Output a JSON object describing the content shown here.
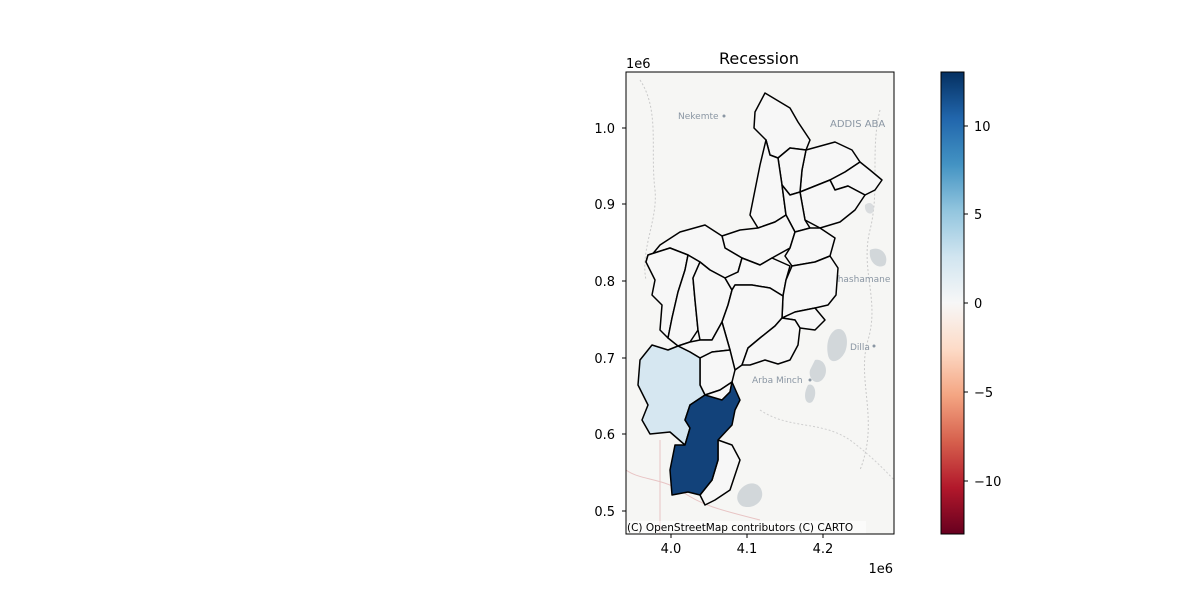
{
  "map": {
    "title": "Recession",
    "x_ticks": [
      "4.0",
      "4.1",
      "4.2"
    ],
    "y_ticks": [
      "0.5",
      "0.6",
      "0.7",
      "0.8",
      "0.9",
      "1.0"
    ],
    "x_offset": "1e6",
    "y_offset": "1e6",
    "attribution": "(C) OpenStreetMap contributors (C) CARTO",
    "place_labels": [
      "Nekemte",
      "ADDIS ABA",
      "Shashamane",
      "Dilla",
      "Arba Minch"
    ]
  },
  "colorbar": {
    "ticks": [
      "10",
      "5",
      "0",
      "−5",
      "−10"
    ],
    "min": -13,
    "max": 13,
    "colors": [
      "#67001f",
      "#b2182b",
      "#d6604d",
      "#f4a582",
      "#fddbc7",
      "#f7f7f7",
      "#d1e5f0",
      "#92c5de",
      "#4393c3",
      "#2166ac",
      "#053061"
    ]
  },
  "regions": {
    "neutral_color": "#f7f7f7",
    "light_blue_color": "#d6e7f1",
    "dark_blue_color": "#12427a"
  }
}
